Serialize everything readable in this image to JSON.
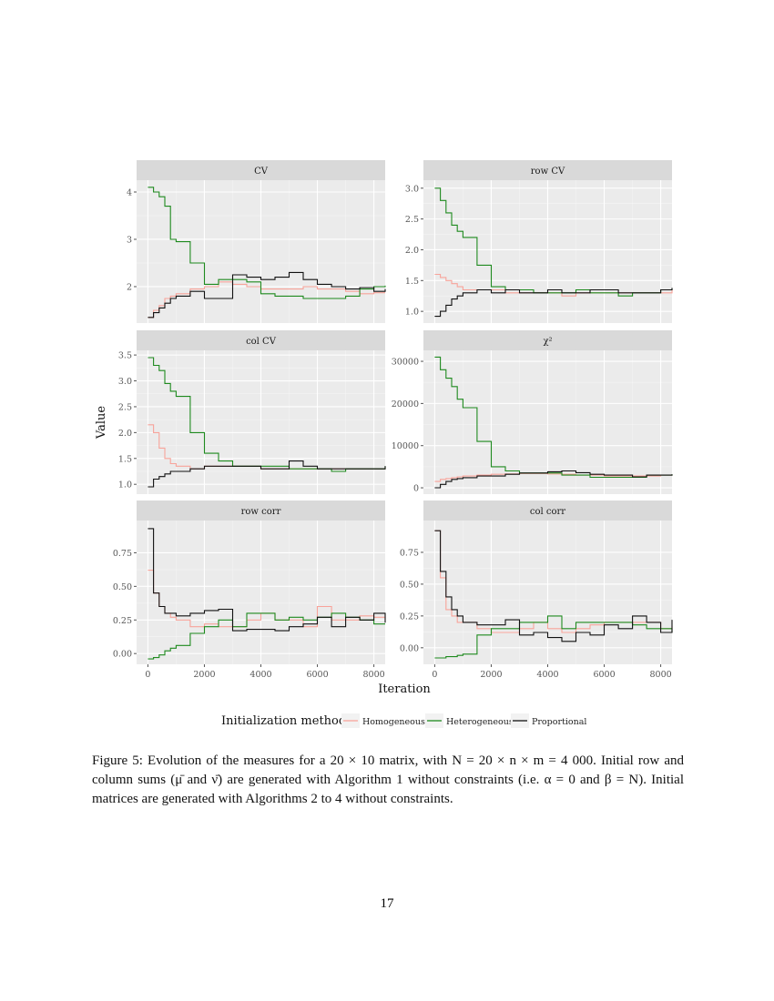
{
  "chart_data": {
    "type": "line",
    "facets": true,
    "xlabel": "Iteration",
    "ylabel": "Value",
    "xlim": [
      -400,
      8400
    ],
    "xticks": [
      0,
      2000,
      4000,
      6000,
      8000
    ],
    "grid": true,
    "legend": {
      "title": "Initialization method",
      "position": "bottom",
      "entries": [
        "Homogeneous",
        "Heterogeneous",
        "Proportional"
      ]
    },
    "colors": {
      "Homogeneous": "#F8A39A",
      "Heterogeneous": "#1E8A1E",
      "Proportional": "#111111"
    },
    "x": [
      0,
      200,
      400,
      600,
      800,
      1000,
      1500,
      2000,
      2500,
      3000,
      3500,
      4000,
      4500,
      5000,
      5500,
      6000,
      6500,
      7000,
      7500,
      8000,
      8400
    ],
    "panels": [
      {
        "title": "CV",
        "ylim": [
          1.23,
          4.25
        ],
        "yticks": [
          2,
          3,
          4
        ],
        "ytick_labels": [
          "2",
          "3",
          "4"
        ],
        "series": [
          {
            "name": "Homogeneous",
            "values": [
              1.35,
              1.5,
              1.6,
              1.75,
              1.8,
              1.85,
              1.95,
              2.0,
              2.1,
              2.05,
              2.0,
              1.95,
              1.95,
              1.95,
              2.0,
              1.95,
              1.95,
              1.9,
              1.85,
              1.87,
              1.87
            ]
          },
          {
            "name": "Heterogeneous",
            "values": [
              4.1,
              4.0,
              3.9,
              3.7,
              3.0,
              2.95,
              2.5,
              2.05,
              2.15,
              2.15,
              2.1,
              1.85,
              1.8,
              1.8,
              1.75,
              1.75,
              1.75,
              1.8,
              1.95,
              2.0,
              2.02
            ]
          },
          {
            "name": "Proportional",
            "values": [
              1.35,
              1.45,
              1.55,
              1.65,
              1.75,
              1.8,
              1.9,
              1.75,
              1.75,
              2.25,
              2.2,
              2.15,
              2.2,
              2.3,
              2.15,
              2.05,
              2.0,
              1.95,
              1.98,
              1.9,
              1.95
            ]
          }
        ]
      },
      {
        "title": "row CV",
        "ylim": [
          0.81,
          3.13
        ],
        "yticks": [
          1,
          1.5,
          2,
          2.5,
          3
        ],
        "ytick_labels": [
          "1.0",
          "1.5",
          "2.0",
          "2.5",
          "3.0"
        ],
        "series": [
          {
            "name": "Homogeneous",
            "values": [
              1.6,
              1.55,
              1.5,
              1.45,
              1.4,
              1.35,
              1.35,
              1.35,
              1.3,
              1.3,
              1.3,
              1.3,
              1.25,
              1.3,
              1.3,
              1.3,
              1.3,
              1.3,
              1.3,
              1.3,
              1.35
            ]
          },
          {
            "name": "Heterogeneous",
            "values": [
              3.0,
              2.8,
              2.6,
              2.4,
              2.3,
              2.2,
              1.75,
              1.4,
              1.35,
              1.35,
              1.3,
              1.3,
              1.3,
              1.35,
              1.3,
              1.3,
              1.25,
              1.3,
              1.3,
              1.35,
              1.37
            ]
          },
          {
            "name": "Proportional",
            "values": [
              0.92,
              1.0,
              1.1,
              1.2,
              1.25,
              1.3,
              1.35,
              1.3,
              1.35,
              1.3,
              1.3,
              1.35,
              1.3,
              1.3,
              1.35,
              1.35,
              1.3,
              1.3,
              1.3,
              1.35,
              1.38
            ]
          }
        ]
      },
      {
        "title": "col CV",
        "ylim": [
          0.81,
          3.59
        ],
        "yticks": [
          1,
          1.5,
          2,
          2.5,
          3,
          3.5
        ],
        "ytick_labels": [
          "1.0",
          "1.5",
          "2.0",
          "2.5",
          "3.0",
          "3.5"
        ],
        "series": [
          {
            "name": "Homogeneous",
            "values": [
              2.15,
              2.0,
              1.7,
              1.5,
              1.4,
              1.35,
              1.3,
              1.35,
              1.35,
              1.35,
              1.35,
              1.3,
              1.3,
              1.3,
              1.3,
              1.3,
              1.3,
              1.3,
              1.3,
              1.3,
              1.33
            ]
          },
          {
            "name": "Heterogeneous",
            "values": [
              3.45,
              3.3,
              3.2,
              2.95,
              2.8,
              2.7,
              2.0,
              1.6,
              1.45,
              1.35,
              1.35,
              1.35,
              1.35,
              1.3,
              1.3,
              1.3,
              1.25,
              1.3,
              1.3,
              1.3,
              1.35
            ]
          },
          {
            "name": "Proportional",
            "values": [
              0.95,
              1.1,
              1.15,
              1.2,
              1.25,
              1.25,
              1.3,
              1.35,
              1.35,
              1.35,
              1.35,
              1.3,
              1.3,
              1.45,
              1.35,
              1.3,
              1.3,
              1.3,
              1.3,
              1.3,
              1.35
            ]
          }
        ]
      },
      {
        "title": "χ²",
        "ylim": [
          -1500,
          32600
        ],
        "yticks": [
          0,
          10000,
          20000,
          30000
        ],
        "ytick_labels": [
          "0",
          "10000",
          "20000",
          "30000"
        ],
        "series": [
          {
            "name": "Homogeneous",
            "values": [
              1500,
              2000,
              2200,
              2400,
              2600,
              2800,
              3000,
              3200,
              3300,
              3400,
              3400,
              3300,
              3200,
              3000,
              3000,
              2800,
              2800,
              2800,
              2800,
              3000,
              3100
            ]
          },
          {
            "name": "Heterogeneous",
            "values": [
              31000,
              28000,
              26000,
              24000,
              21000,
              19000,
              11000,
              5000,
              4000,
              3500,
              3500,
              3500,
              3000,
              3000,
              2500,
              2500,
              2500,
              2500,
              3000,
              3000,
              3200
            ]
          },
          {
            "name": "Proportional",
            "values": [
              0,
              800,
              1500,
              2000,
              2200,
              2400,
              2800,
              2800,
              3200,
              3500,
              3500,
              3800,
              4000,
              3600,
              3200,
              3000,
              3000,
              2600,
              3000,
              3000,
              3200
            ]
          }
        ]
      },
      {
        "title": "row corr",
        "ylim": [
          -0.08,
          0.99
        ],
        "yticks": [
          0,
          0.25,
          0.5,
          0.75
        ],
        "ytick_labels": [
          "0.00",
          "0.25",
          "0.50",
          "0.75"
        ],
        "series": [
          {
            "name": "Homogeneous",
            "values": [
              0.62,
              0.45,
              0.35,
              0.3,
              0.27,
              0.25,
              0.2,
              0.22,
              0.2,
              0.2,
              0.25,
              0.3,
              0.25,
              0.25,
              0.2,
              0.35,
              0.25,
              0.25,
              0.28,
              0.27,
              0.25
            ]
          },
          {
            "name": "Heterogeneous",
            "values": [
              -0.04,
              -0.03,
              -0.01,
              0.02,
              0.04,
              0.06,
              0.15,
              0.2,
              0.25,
              0.2,
              0.3,
              0.3,
              0.25,
              0.27,
              0.25,
              0.27,
              0.3,
              0.27,
              0.25,
              0.22,
              0.22
            ]
          },
          {
            "name": "Proportional",
            "values": [
              0.93,
              0.45,
              0.35,
              0.3,
              0.3,
              0.28,
              0.3,
              0.32,
              0.33,
              0.17,
              0.18,
              0.18,
              0.17,
              0.2,
              0.22,
              0.27,
              0.2,
              0.27,
              0.25,
              0.3,
              0.23
            ]
          }
        ]
      },
      {
        "title": "col corr",
        "ylim": [
          -0.13,
          1.0
        ],
        "yticks": [
          0,
          0.25,
          0.5,
          0.75
        ],
        "ytick_labels": [
          "0.00",
          "0.25",
          "0.50",
          "0.75"
        ],
        "series": [
          {
            "name": "Homogeneous",
            "values": [
              0.92,
              0.55,
              0.3,
              0.25,
              0.2,
              0.2,
              0.15,
              0.12,
              0.12,
              0.15,
              0.2,
              0.15,
              0.12,
              0.15,
              0.18,
              0.2,
              0.2,
              0.2,
              0.2,
              0.15,
              0.17
            ]
          },
          {
            "name": "Heterogeneous",
            "values": [
              -0.08,
              -0.08,
              -0.07,
              -0.07,
              -0.06,
              -0.05,
              0.1,
              0.15,
              0.15,
              0.2,
              0.2,
              0.25,
              0.15,
              0.2,
              0.2,
              0.2,
              0.2,
              0.18,
              0.15,
              0.15,
              0.12
            ]
          },
          {
            "name": "Proportional",
            "values": [
              0.92,
              0.6,
              0.4,
              0.3,
              0.25,
              0.2,
              0.18,
              0.18,
              0.22,
              0.1,
              0.12,
              0.08,
              0.05,
              0.12,
              0.1,
              0.18,
              0.15,
              0.25,
              0.2,
              0.12,
              0.22
            ]
          }
        ]
      }
    ]
  },
  "caption": "Figure 5: Evolution of the measures for a 20 × 10 matrix, with N = 20 × n × m = 4 000. Initial row and column sums (μ̄ and ν̄) are generated with Algorithm 1 without constraints (i.e. α = 0 and β = N). Initial matrices are generated with Algorithms 2 to 4 without constraints.",
  "page_number": "17"
}
